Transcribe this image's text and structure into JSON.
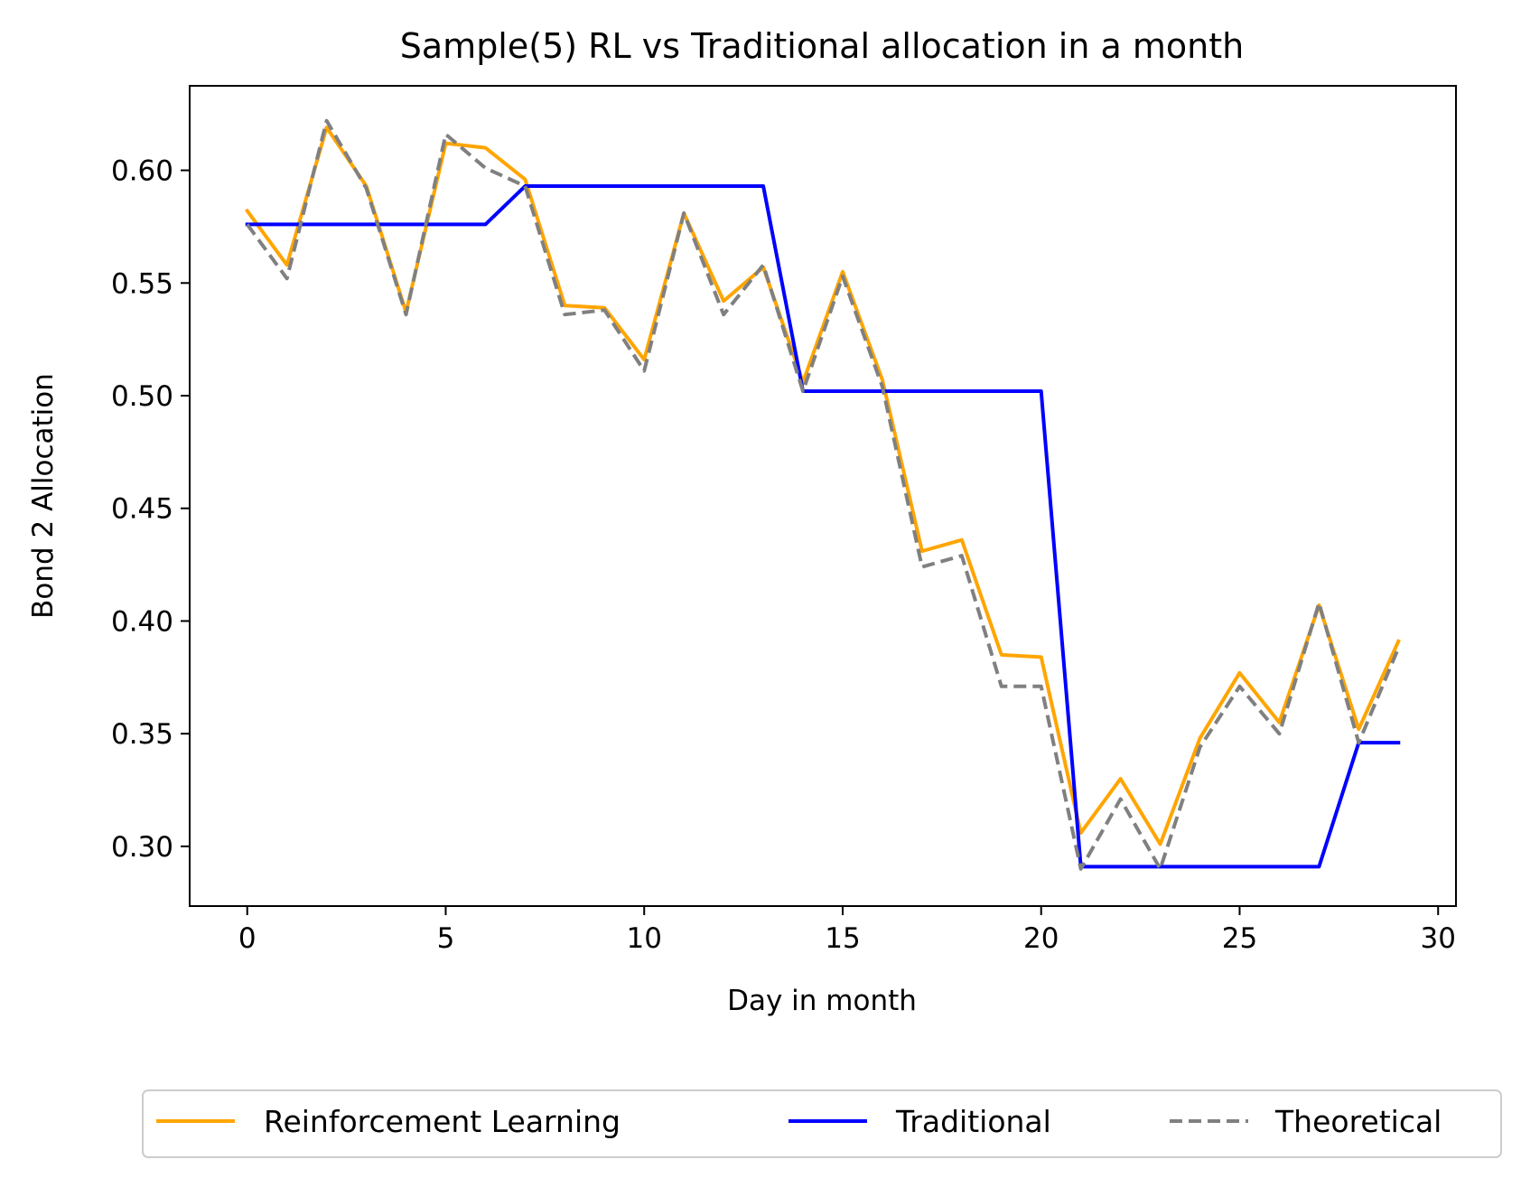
{
  "chart_data": {
    "type": "line",
    "title": "Sample(5) RL vs Traditional allocation in a month",
    "xlabel": "Day in month",
    "ylabel": "Bond 2 Allocation",
    "xlim": [
      -1.45,
      30.45
    ],
    "ylim": [
      0.2735,
      0.6375
    ],
    "xticks": [
      0,
      5,
      10,
      15,
      20,
      25,
      30
    ],
    "yticks": [
      0.3,
      0.35,
      0.4,
      0.45,
      0.5,
      0.55,
      0.6
    ],
    "ytick_labels": [
      "0.30",
      "0.35",
      "0.40",
      "0.45",
      "0.50",
      "0.55",
      "0.60"
    ],
    "grid": false,
    "legend": "bottom-center, outside plot",
    "x": [
      0,
      1,
      2,
      3,
      4,
      5,
      6,
      7,
      8,
      9,
      10,
      11,
      12,
      13,
      14,
      15,
      16,
      17,
      18,
      19,
      20,
      21,
      22,
      23,
      24,
      25,
      26,
      27,
      28,
      29
    ],
    "series": [
      {
        "name": "Reinforcement Learning",
        "color": "#FFA500",
        "style": "solid",
        "values": [
          0.582,
          0.558,
          0.619,
          0.593,
          0.537,
          0.612,
          0.61,
          0.596,
          0.54,
          0.539,
          0.516,
          0.581,
          0.542,
          0.557,
          0.506,
          0.555,
          0.507,
          0.431,
          0.436,
          0.385,
          0.384,
          0.306,
          0.33,
          0.301,
          0.348,
          0.377,
          0.355,
          0.407,
          0.352,
          0.391
        ]
      },
      {
        "name": "Traditional",
        "color": "#0000FF",
        "style": "solid",
        "values": [
          0.576,
          0.576,
          0.576,
          0.576,
          0.576,
          0.576,
          0.576,
          0.593,
          0.593,
          0.593,
          0.593,
          0.593,
          0.593,
          0.593,
          0.502,
          0.502,
          0.502,
          0.502,
          0.502,
          0.502,
          0.502,
          0.291,
          0.291,
          0.291,
          0.291,
          0.291,
          0.291,
          0.291,
          0.346,
          0.346
        ]
      },
      {
        "name": "Theoretical",
        "color": "#808080",
        "style": "dashed",
        "values": [
          0.576,
          0.552,
          0.622,
          0.592,
          0.536,
          0.616,
          0.601,
          0.593,
          0.536,
          0.538,
          0.511,
          0.581,
          0.536,
          0.558,
          0.502,
          0.553,
          0.504,
          0.424,
          0.429,
          0.371,
          0.371,
          0.29,
          0.321,
          0.29,
          0.344,
          0.371,
          0.35,
          0.408,
          0.346,
          0.388
        ]
      }
    ]
  }
}
